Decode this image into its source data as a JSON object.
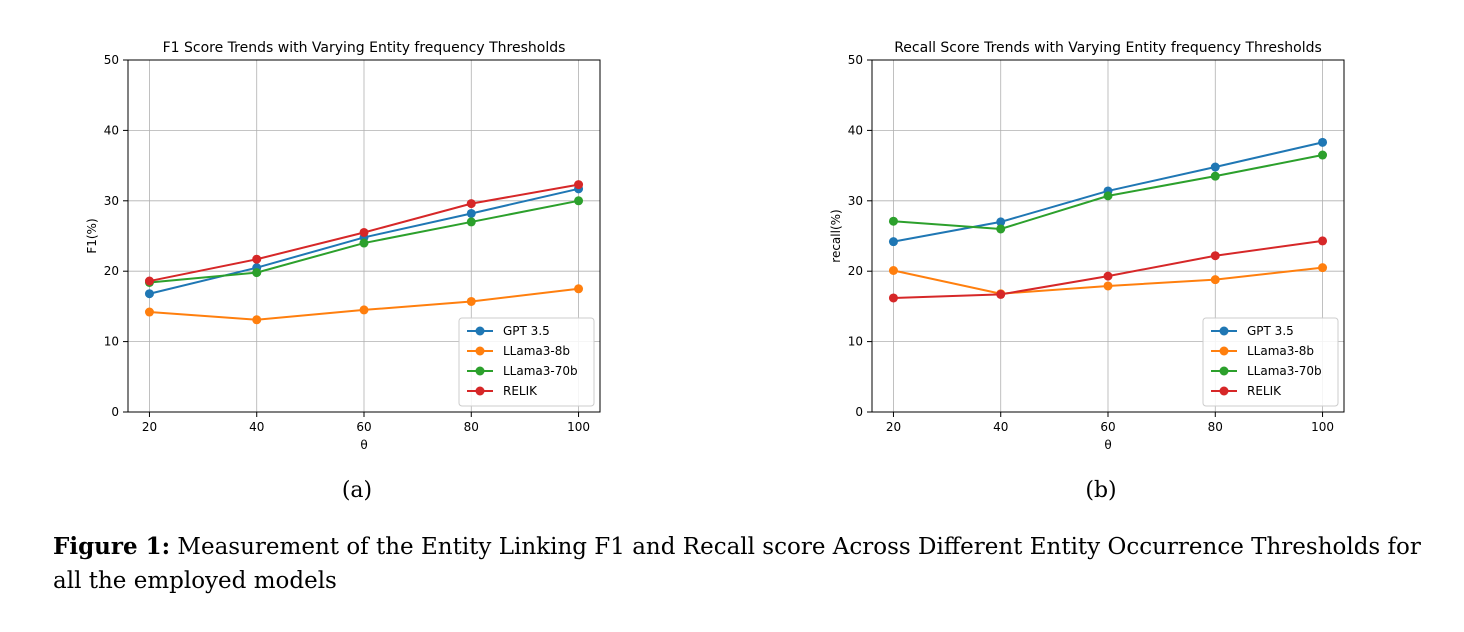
{
  "chart_data": [
    {
      "type": "line",
      "title": "F1 Score Trends with Varying Entity frequency Thresholds",
      "xlabel": "θ",
      "ylabel": "F1(%)",
      "x": [
        20,
        40,
        60,
        80,
        100
      ],
      "xticks": [
        "20",
        "40",
        "60",
        "80",
        "100"
      ],
      "yticks": [
        "0",
        "10",
        "20",
        "30",
        "40",
        "50"
      ],
      "ylim": [
        0,
        50
      ],
      "grid": true,
      "legend_position": "lower-right",
      "series": [
        {
          "name": "GPT 3.5",
          "color": "#1f77b4",
          "values": [
            16.8,
            20.5,
            24.8,
            28.2,
            31.7
          ]
        },
        {
          "name": "LLama3-8b",
          "color": "#ff7f0e",
          "values": [
            14.2,
            13.1,
            14.5,
            15.7,
            17.5
          ]
        },
        {
          "name": "LLama3-70b",
          "color": "#2ca02c",
          "values": [
            18.4,
            19.8,
            24.0,
            27.0,
            30.0
          ]
        },
        {
          "name": "RELIK",
          "color": "#d62728",
          "values": [
            18.6,
            21.7,
            25.5,
            29.6,
            32.3
          ]
        }
      ]
    },
    {
      "type": "line",
      "title": "Recall Score Trends with Varying Entity frequency Thresholds",
      "xlabel": "θ",
      "ylabel": "recall(%)",
      "x": [
        20,
        40,
        60,
        80,
        100
      ],
      "xticks": [
        "20",
        "40",
        "60",
        "80",
        "100"
      ],
      "yticks": [
        "0",
        "10",
        "20",
        "30",
        "40",
        "50"
      ],
      "ylim": [
        0,
        50
      ],
      "grid": true,
      "legend_position": "lower-right",
      "series": [
        {
          "name": "GPT 3.5",
          "color": "#1f77b4",
          "values": [
            24.2,
            27.0,
            31.4,
            34.8,
            38.3
          ]
        },
        {
          "name": "LLama3-8b",
          "color": "#ff7f0e",
          "values": [
            20.1,
            16.8,
            17.9,
            18.8,
            20.5
          ]
        },
        {
          "name": "LLama3-70b",
          "color": "#2ca02c",
          "values": [
            27.1,
            26.0,
            30.7,
            33.5,
            36.5
          ]
        },
        {
          "name": "RELIK",
          "color": "#d62728",
          "values": [
            16.2,
            16.7,
            19.3,
            22.2,
            24.3
          ]
        }
      ]
    }
  ],
  "subcaptions": [
    "(a)",
    "(b)"
  ],
  "caption": {
    "label": "Figure 1:",
    "text": " Measurement of the Entity Linking F1 and Recall score Across Different Entity Occurrence Thresholds for all the employed models"
  }
}
